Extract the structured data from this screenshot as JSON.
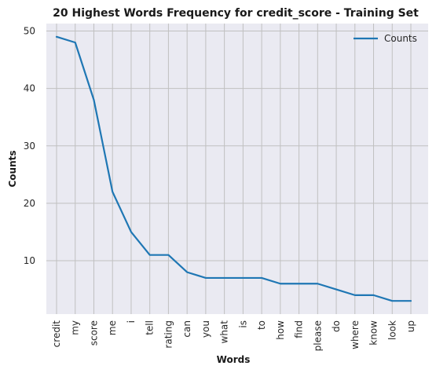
{
  "chart_data": {
    "type": "line",
    "title": "20 Highest Words Frequency for credit_score - Training Set",
    "xlabel": "Words",
    "ylabel": "Counts",
    "categories": [
      "credit",
      "my",
      "score",
      "me",
      "i",
      "tell",
      "rating",
      "can",
      "you",
      "what",
      "is",
      "to",
      "how",
      "find",
      "please",
      "do",
      "where",
      "know",
      "look",
      "up"
    ],
    "series": [
      {
        "name": "Counts",
        "values": [
          49,
          48,
          38,
          22,
          15,
          11,
          11,
          8,
          7,
          7,
          7,
          7,
          6,
          6,
          6,
          5,
          4,
          4,
          3,
          3
        ]
      }
    ],
    "ylim": [
      0.7,
      51.3
    ],
    "yticks": [
      10,
      20,
      30,
      40,
      50
    ],
    "grid": true,
    "legend": "top-right",
    "colors": {
      "line": "#1f77b4",
      "plot_bg": "#eaeaf2",
      "grid": "#c0c0c0"
    }
  }
}
